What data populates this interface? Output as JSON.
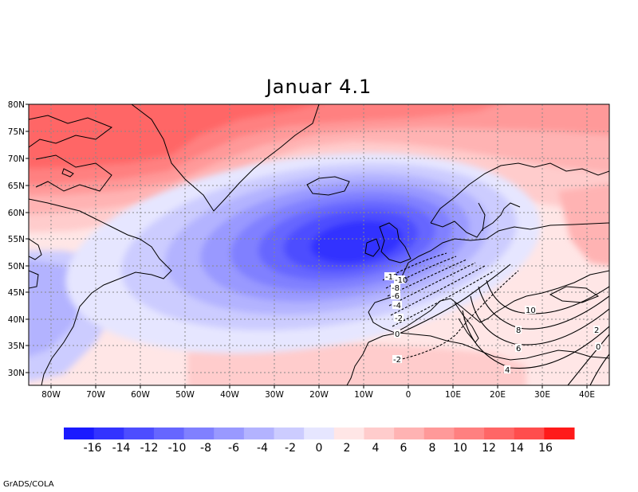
{
  "title": "Januar 4.1",
  "footer": "GrADS/COLA",
  "map": {
    "lon_labels": [
      "80W",
      "70W",
      "60W",
      "50W",
      "40W",
      "30W",
      "20W",
      "10W",
      "0",
      "10E",
      "20E",
      "30E",
      "40E"
    ],
    "lat_labels": [
      "80N",
      "75N",
      "70N",
      "65N",
      "60N",
      "55N",
      "50N",
      "45N",
      "40N",
      "35N",
      "30N"
    ],
    "contour_labels": [
      "-12",
      "-10",
      "-8",
      "-6",
      "-4",
      "-2",
      "0",
      "-2",
      "10",
      "8",
      "6",
      "4",
      "2",
      "0"
    ]
  },
  "colorbar": {
    "labels": [
      "-16",
      "-14",
      "-12",
      "-10",
      "-8",
      "-6",
      "-4",
      "-2",
      "0",
      "2",
      "4",
      "6",
      "8",
      "10",
      "12",
      "14",
      "16"
    ],
    "colors": [
      "#1a1aff",
      "#3333ff",
      "#4d4dff",
      "#6666ff",
      "#8080ff",
      "#9999ff",
      "#b3b3ff",
      "#ccccff",
      "#e6e6ff",
      "#ffe6e6",
      "#ffcccc",
      "#ffb3b3",
      "#ff9999",
      "#ff8080",
      "#ff6666",
      "#ff4d4d",
      "#ff1a1a"
    ]
  }
}
